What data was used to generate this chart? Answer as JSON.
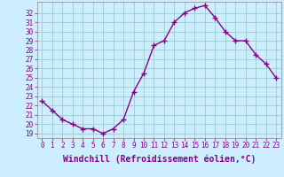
{
  "x": [
    0,
    1,
    2,
    3,
    4,
    5,
    6,
    7,
    8,
    9,
    10,
    11,
    12,
    13,
    14,
    15,
    16,
    17,
    18,
    19,
    20,
    21,
    22,
    23
  ],
  "y": [
    22.5,
    21.5,
    20.5,
    20.0,
    19.5,
    19.5,
    19.0,
    19.5,
    20.5,
    23.5,
    25.5,
    28.5,
    29.0,
    31.0,
    32.0,
    32.5,
    32.8,
    31.5,
    30.0,
    29.0,
    29.0,
    27.5,
    26.5,
    25.0
  ],
  "line_color": "#880088",
  "marker": "+",
  "marker_size": 4,
  "linewidth": 1.0,
  "bg_color": "#cceeff",
  "grid_color": "#99cccc",
  "xlabel": "Windchill (Refroidissement éolien,°C)",
  "ylim": [
    18.5,
    33.2
  ],
  "xlim": [
    -0.5,
    23.5
  ],
  "yticks": [
    19,
    20,
    21,
    22,
    23,
    24,
    25,
    26,
    27,
    28,
    29,
    30,
    31,
    32
  ],
  "xticks": [
    0,
    1,
    2,
    3,
    4,
    5,
    6,
    7,
    8,
    9,
    10,
    11,
    12,
    13,
    14,
    15,
    16,
    17,
    18,
    19,
    20,
    21,
    22,
    23
  ],
  "tick_color": "#880088",
  "label_fontsize": 6.5,
  "tick_fontsize": 5.5,
  "xlabel_fontsize": 7.0
}
